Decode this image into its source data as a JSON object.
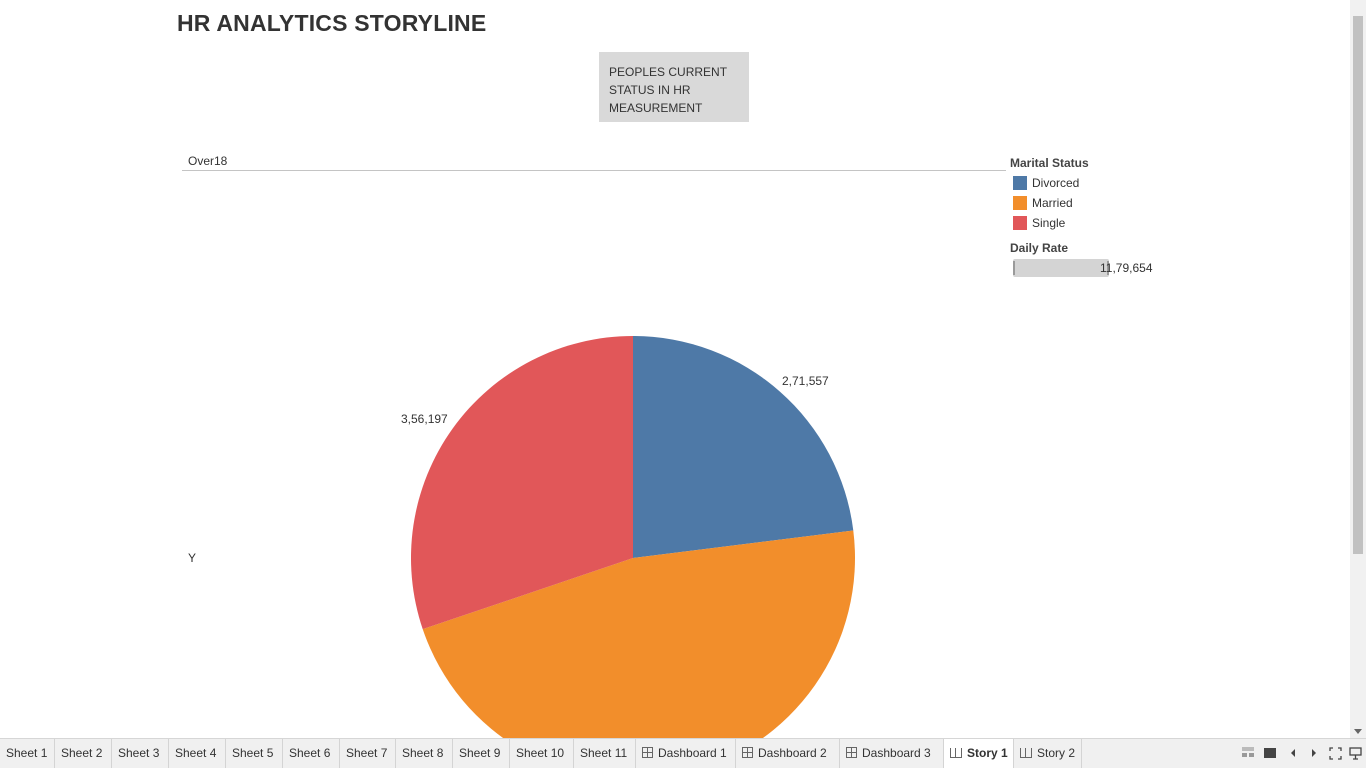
{
  "story": {
    "title": "HR ANALYTICS STORYLINE",
    "caption": [
      "PEOPLES CURRENT",
      "STATUS IN HR",
      "MEASUREMENT"
    ]
  },
  "view": {
    "row_header": "Over18",
    "row_value": "Y"
  },
  "legend": {
    "title": "Marital Status",
    "items": [
      {
        "label": "Divorced",
        "color": "#4e79a7"
      },
      {
        "label": "Married",
        "color": "#f28e2b"
      },
      {
        "label": "Single",
        "color": "#e15759"
      }
    ]
  },
  "size_legend": {
    "title": "Daily Rate",
    "value": "11,79,654"
  },
  "chart_data": {
    "type": "pie",
    "categories": [
      "Divorced",
      "Married",
      "Single"
    ],
    "values": [
      271557,
      551900,
      356197
    ],
    "labels": [
      "2,71,557",
      "",
      "3,56,197"
    ],
    "colors": [
      "#4e79a7",
      "#f28e2b",
      "#e15759"
    ]
  },
  "tabs": [
    {
      "label": "Sheet 1",
      "icon": "none"
    },
    {
      "label": "Sheet 2",
      "icon": "none"
    },
    {
      "label": "Sheet 3",
      "icon": "none"
    },
    {
      "label": "Sheet 4",
      "icon": "none"
    },
    {
      "label": "Sheet 5",
      "icon": "none"
    },
    {
      "label": "Sheet 6",
      "icon": "none"
    },
    {
      "label": "Sheet 7",
      "icon": "none"
    },
    {
      "label": "Sheet 8",
      "icon": "none"
    },
    {
      "label": "Sheet 9",
      "icon": "none"
    },
    {
      "label": "Sheet 10",
      "icon": "none"
    },
    {
      "label": "Sheet 11",
      "icon": "none"
    },
    {
      "label": "Dashboard 1",
      "icon": "dashboard-icon"
    },
    {
      "label": "Dashboard 2",
      "icon": "dashboard-icon"
    },
    {
      "label": "Dashboard 3",
      "icon": "dashboard-icon"
    },
    {
      "label": "Story 1",
      "icon": "story-icon",
      "active": true
    },
    {
      "label": "Story 2",
      "icon": "story-icon"
    }
  ],
  "nav_icons": [
    "filmstrip-icon",
    "single-view-icon",
    "previous-icon",
    "next-icon",
    "fullscreen-icon",
    "presentation-icon"
  ]
}
